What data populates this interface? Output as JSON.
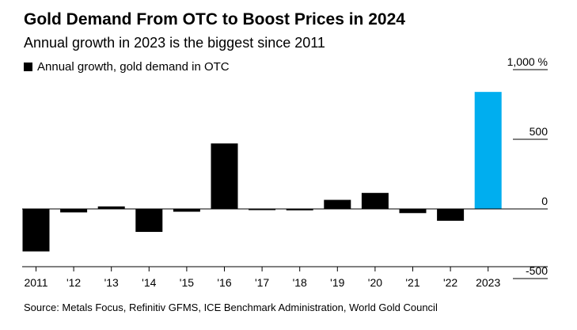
{
  "title": "Gold Demand From OTC to Boost Prices in 2024",
  "subtitle": "Annual growth in 2023 is the biggest since 2011",
  "legend": {
    "label": "Annual growth, gold demand in OTC"
  },
  "source": "Source: Metals Focus, Refinitiv GFMS, ICE Benchmark Administration, World Gold Council",
  "colors": {
    "bar": "#000000",
    "highlight": "#00aeef",
    "axis": "#000000"
  },
  "chart_data": {
    "type": "bar",
    "categories": [
      "2011",
      "'12",
      "'13",
      "'14",
      "'15",
      "'16",
      "'17",
      "'18",
      "'19",
      "'20",
      "'21",
      "'22",
      "2023"
    ],
    "values": [
      -305,
      -25,
      18,
      -165,
      -20,
      470,
      -8,
      -10,
      65,
      115,
      -30,
      -85,
      840
    ],
    "highlight_index": 12,
    "ylim": [
      -550,
      1100
    ],
    "yticks": [
      1000,
      500,
      0,
      -500
    ],
    "ytick_labels": [
      "1,000 %",
      "500",
      "0",
      "-500"
    ],
    "xlabel": "",
    "ylabel": ""
  }
}
